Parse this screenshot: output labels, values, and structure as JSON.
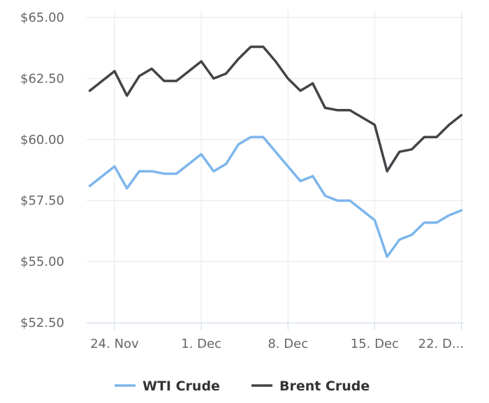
{
  "chart_data": {
    "type": "line",
    "title": "",
    "xlabel": "",
    "ylabel": "",
    "ylim": [
      52.5,
      65.0
    ],
    "y_ticks": [
      "$52.50",
      "$55.00",
      "$57.50",
      "$60.00",
      "$62.50",
      "$65.00"
    ],
    "y_tick_values": [
      52.5,
      55.0,
      57.5,
      60.0,
      62.5,
      65.0
    ],
    "x_ticks": [
      "24. Nov",
      "1. Dec",
      "8. Dec",
      "15. Dec",
      "22. D..."
    ],
    "x_tick_dates": [
      "2020-11-24",
      "2020-12-01",
      "2020-12-08",
      "2020-12-15",
      "2020-12-22"
    ],
    "grid": true,
    "legend_position": "bottom-center",
    "x": [
      "2020-11-22",
      "2020-11-24",
      "2020-11-25",
      "2020-11-26",
      "2020-11-27",
      "2020-11-28",
      "2020-11-29",
      "2020-11-30",
      "2020-12-01",
      "2020-12-02",
      "2020-12-03",
      "2020-12-04",
      "2020-12-05",
      "2020-12-06",
      "2020-12-07",
      "2020-12-08",
      "2020-12-09",
      "2020-12-10",
      "2020-12-11",
      "2020-12-12",
      "2020-12-13",
      "2020-12-14",
      "2020-12-15",
      "2020-12-16",
      "2020-12-17",
      "2020-12-18",
      "2020-12-19",
      "2020-12-20",
      "2020-12-21",
      "2020-12-22"
    ],
    "series": [
      {
        "name": "WTI Crude",
        "color": "#7cb5ec",
        "values": [
          58.1,
          58.9,
          58.0,
          58.7,
          58.7,
          58.6,
          58.6,
          59.0,
          59.4,
          58.7,
          59.0,
          59.8,
          60.1,
          60.1,
          59.5,
          58.9,
          58.3,
          58.5,
          57.7,
          57.5,
          57.5,
          57.1,
          56.7,
          55.2,
          55.9,
          56.1,
          56.6,
          56.6,
          56.9,
          57.1
        ]
      },
      {
        "name": "Brent Crude",
        "color": "#434348",
        "values": [
          62.0,
          62.8,
          61.8,
          62.6,
          62.9,
          62.4,
          62.4,
          62.8,
          63.2,
          62.5,
          62.7,
          63.3,
          63.8,
          63.8,
          63.2,
          62.5,
          62.0,
          62.3,
          61.3,
          61.2,
          61.2,
          60.9,
          60.6,
          58.7,
          59.5,
          59.6,
          60.1,
          60.1,
          60.6,
          61.0
        ]
      }
    ]
  }
}
